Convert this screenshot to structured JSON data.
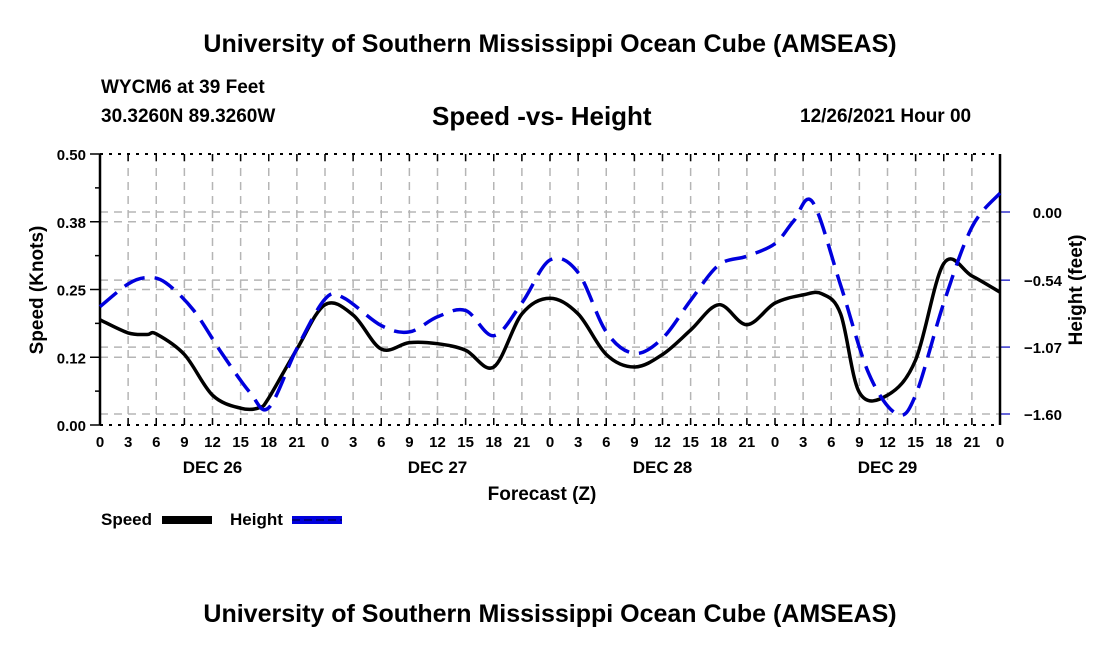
{
  "header": {
    "main_title": "University of Southern Mississippi Ocean Cube (AMSEAS)",
    "station": "WYCM6 at 39 Feet",
    "coords": "30.3260N  89.3260W",
    "date": "12/26/2021 Hour 00"
  },
  "footer": {
    "title": "University of Southern Mississippi Ocean Cube (AMSEAS)"
  },
  "chart_data": {
    "type": "line",
    "title": "Speed -vs- Height",
    "xlabel": "Forecast (Z)",
    "ylabel": "Speed (Knots)",
    "y2label": "Height (feet)",
    "x_range_hours": [
      0,
      96
    ],
    "x_tick_labels": [
      "0",
      "3",
      "6",
      "9",
      "12",
      "15",
      "18",
      "21",
      "0",
      "3",
      "6",
      "9",
      "12",
      "15",
      "18",
      "21",
      "0",
      "3",
      "6",
      "9",
      "12",
      "15",
      "18",
      "21",
      "0",
      "3",
      "6",
      "9",
      "12",
      "15",
      "18",
      "21",
      "0"
    ],
    "day_labels": [
      {
        "label": "DEC 26",
        "hour": 12
      },
      {
        "label": "DEC 27",
        "hour": 36
      },
      {
        "label": "DEC 28",
        "hour": 60
      },
      {
        "label": "DEC 29",
        "hour": 84
      }
    ],
    "ylim": [
      0,
      0.5
    ],
    "y_ticks": [
      0.0,
      0.125,
      0.25,
      0.375,
      0.5
    ],
    "y_tick_labels": [
      "0.00",
      "0.12",
      "0.25",
      "0.38",
      "0.50"
    ],
    "y2lim": [
      -1.69,
      0.45
    ],
    "y2_ticks": [
      0.0,
      -0.54,
      -1.07,
      -1.6
    ],
    "y2_tick_labels": [
      "0.00",
      "−0.54",
      "−1.07",
      "−1.60"
    ],
    "grid": true,
    "legend": [
      {
        "name": "Speed",
        "color": "#000000",
        "style": "solid"
      },
      {
        "name": "Height",
        "color": "#0000dd",
        "style": "dashed"
      }
    ],
    "series": [
      {
        "name": "Speed",
        "axis": "left",
        "color": "#000000",
        "x": [
          0,
          3,
          5,
          6,
          9,
          12,
          15,
          17,
          18,
          21,
          24,
          27,
          30,
          33,
          36,
          39,
          42,
          45,
          48,
          51,
          54,
          57,
          60,
          63,
          66,
          69,
          72,
          75,
          77,
          79,
          81,
          84,
          87,
          90,
          93,
          96
        ],
        "values": [
          0.194,
          0.17,
          0.167,
          0.168,
          0.13,
          0.055,
          0.031,
          0.032,
          0.05,
          0.14,
          0.222,
          0.203,
          0.14,
          0.152,
          0.15,
          0.138,
          0.107,
          0.205,
          0.234,
          0.205,
          0.13,
          0.107,
          0.13,
          0.175,
          0.222,
          0.185,
          0.225,
          0.24,
          0.242,
          0.205,
          0.06,
          0.055,
          0.12,
          0.298,
          0.275,
          0.245
        ]
      },
      {
        "name": "Height",
        "axis": "right",
        "color": "#0000dd",
        "x": [
          0,
          3,
          5,
          7,
          10,
          13,
          16,
          18,
          21,
          24,
          26,
          30,
          33,
          36,
          39,
          42,
          45,
          48,
          51,
          54,
          57,
          60,
          63,
          66,
          69,
          72,
          74,
          76,
          79,
          82,
          85,
          87,
          90,
          93,
          96
        ],
        "values": [
          -0.75,
          -0.57,
          -0.52,
          -0.56,
          -0.78,
          -1.12,
          -1.43,
          -1.55,
          -1.08,
          -0.69,
          -0.68,
          -0.9,
          -0.95,
          -0.83,
          -0.78,
          -0.98,
          -0.72,
          -0.38,
          -0.48,
          -0.95,
          -1.12,
          -1.0,
          -0.7,
          -0.42,
          -0.35,
          -0.25,
          -0.07,
          0.08,
          -0.58,
          -1.28,
          -1.6,
          -1.45,
          -0.72,
          -0.12,
          0.15
        ]
      }
    ]
  }
}
